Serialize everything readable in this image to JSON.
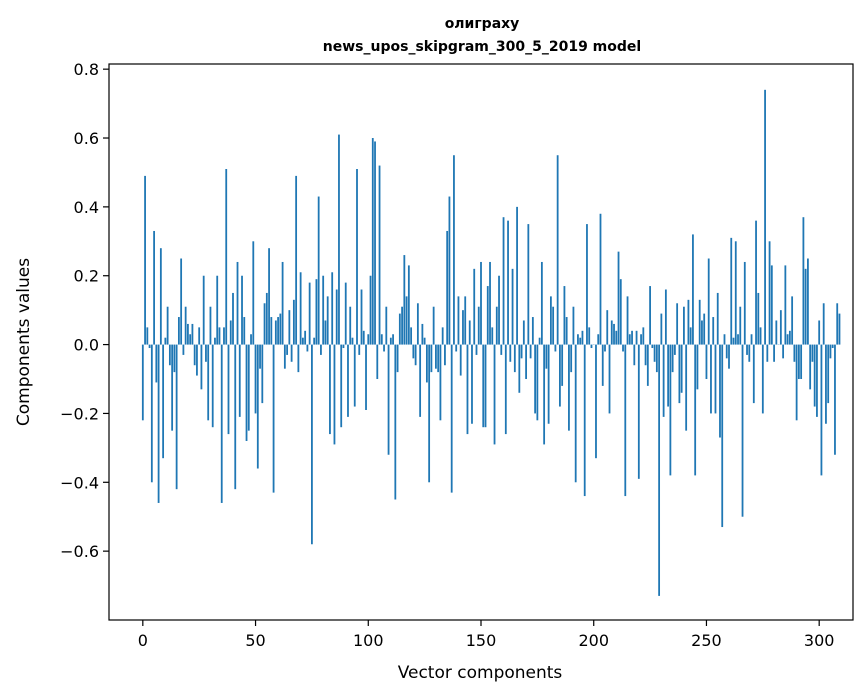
{
  "chart_data": {
    "type": "bar",
    "title_line1": "олиграху",
    "title_line2": "news_upos_skipgram_300_5_2019 model",
    "xlabel": "Vector components",
    "ylabel": "Components values",
    "xlim": [
      -15,
      315
    ],
    "ylim": [
      -0.8,
      0.815
    ],
    "xticks": [
      0,
      50,
      100,
      150,
      200,
      250,
      300
    ],
    "yticks": [
      -0.6,
      -0.4,
      -0.2,
      0.0,
      0.2,
      0.4,
      0.6,
      0.8
    ],
    "ytick_labels": [
      "−0.6",
      "−0.4",
      "−0.2",
      "0.0",
      "0.2",
      "0.4",
      "0.6",
      "0.8"
    ],
    "grid": false,
    "bar_color": "#1f77b4",
    "values": [
      -0.22,
      0.49,
      0.05,
      -0.01,
      -0.4,
      0.33,
      -0.11,
      -0.46,
      0.28,
      -0.33,
      0.02,
      0.11,
      -0.06,
      -0.25,
      -0.08,
      -0.42,
      0.08,
      0.25,
      -0.03,
      0.11,
      0.06,
      0.03,
      0.06,
      -0.06,
      -0.09,
      0.05,
      -0.13,
      0.2,
      -0.05,
      -0.22,
      0.11,
      -0.24,
      0.02,
      0.2,
      0.05,
      -0.46,
      0.05,
      0.51,
      -0.26,
      0.07,
      0.15,
      -0.42,
      0.24,
      -0.21,
      0.2,
      0.08,
      -0.28,
      -0.25,
      0.03,
      0.3,
      -0.2,
      -0.36,
      -0.07,
      -0.17,
      0.12,
      0.15,
      0.28,
      0.08,
      -0.43,
      0.07,
      0.08,
      0.09,
      0.24,
      -0.07,
      -0.03,
      0.1,
      -0.05,
      0.13,
      0.49,
      -0.08,
      0.21,
      0.02,
      0.04,
      -0.02,
      0.18,
      -0.58,
      0.02,
      0.19,
      0.43,
      -0.03,
      0.2,
      0.07,
      0.14,
      -0.26,
      0.21,
      -0.29,
      0.16,
      0.61,
      -0.24,
      -0.01,
      0.18,
      -0.21,
      0.11,
      0.02,
      -0.18,
      0.51,
      -0.03,
      0.16,
      0.04,
      -0.19,
      0.03,
      0.2,
      0.6,
      0.59,
      -0.1,
      0.52,
      0.03,
      -0.02,
      0.11,
      -0.32,
      0.02,
      0.03,
      -0.45,
      -0.08,
      0.09,
      0.11,
      0.26,
      0.14,
      0.23,
      0.05,
      -0.04,
      -0.06,
      0.12,
      -0.21,
      0.06,
      0.02,
      -0.11,
      -0.4,
      -0.08,
      0.11,
      -0.07,
      -0.08,
      -0.22,
      0.05,
      -0.06,
      0.33,
      0.43,
      -0.43,
      0.55,
      -0.02,
      0.14,
      -0.09,
      0.1,
      0.14,
      -0.26,
      0.07,
      -0.23,
      0.22,
      -0.03,
      0.11,
      0.24,
      -0.24,
      -0.24,
      0.17,
      0.24,
      0.05,
      -0.29,
      0.11,
      0.2,
      -0.03,
      0.37,
      -0.26,
      0.36,
      -0.05,
      0.22,
      -0.08,
      0.4,
      -0.14,
      -0.04,
      0.07,
      -0.1,
      0.35,
      -0.04,
      0.08,
      -0.2,
      -0.22,
      0.02,
      0.24,
      -0.29,
      -0.07,
      -0.23,
      0.14,
      0.11,
      -0.02,
      0.55,
      -0.18,
      -0.12,
      0.17,
      0.08,
      -0.25,
      -0.08,
      0.11,
      -0.4,
      0.03,
      0.02,
      0.04,
      -0.44,
      0.35,
      0.05,
      -0.01,
      0.0,
      -0.33,
      0.03,
      0.38,
      -0.12,
      -0.02,
      0.1,
      -0.2,
      0.07,
      0.06,
      0.04,
      0.27,
      0.19,
      -0.02,
      -0.44,
      0.14,
      0.03,
      0.04,
      -0.06,
      0.04,
      -0.39,
      0.03,
      0.05,
      -0.06,
      -0.12,
      0.17,
      -0.01,
      -0.05,
      -0.08,
      -0.73,
      0.09,
      -0.21,
      0.16,
      -0.18,
      -0.38,
      -0.08,
      -0.03,
      0.12,
      -0.17,
      -0.14,
      0.11,
      -0.25,
      0.13,
      0.05,
      0.32,
      -0.38,
      -0.13,
      0.13,
      0.07,
      0.09,
      -0.1,
      0.25,
      -0.2,
      0.08,
      -0.2,
      0.15,
      -0.27,
      -0.53,
      0.03,
      -0.04,
      -0.07,
      0.31,
      0.02,
      0.3,
      0.03,
      0.11,
      -0.5,
      0.24,
      -0.03,
      -0.05,
      0.03,
      -0.17,
      0.36,
      0.15,
      0.05,
      -0.2,
      0.74,
      -0.05,
      0.3,
      0.23,
      -0.05,
      0.07,
      0.0,
      0.1,
      -0.04,
      0.23,
      0.03,
      0.04,
      0.14,
      -0.05,
      -0.22,
      -0.1,
      -0.1,
      0.37,
      0.22,
      0.25,
      -0.13,
      -0.05,
      -0.18,
      -0.21,
      0.07,
      -0.38,
      0.12,
      -0.23,
      -0.17,
      -0.04,
      -0.01,
      -0.32,
      0.12,
      0.09
    ]
  }
}
